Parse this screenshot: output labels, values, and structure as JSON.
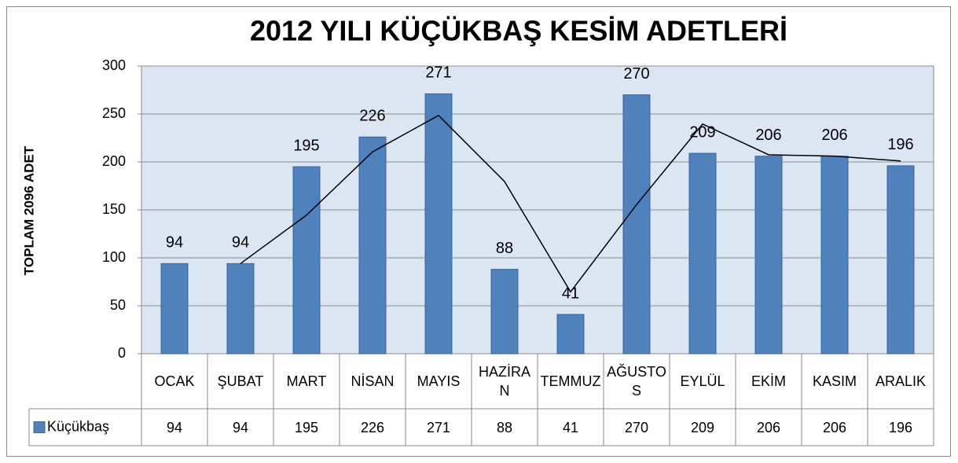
{
  "chart_data": {
    "type": "bar",
    "title": "2012 YILI KÜÇÜKBAŞ KESİM ADETLERİ",
    "y_axis_label": "TOPLAM  2096 ADET",
    "categories": [
      "OCAK",
      "ŞUBAT",
      "MART",
      "NİSAN",
      "MAYIS",
      "HAZİRAN",
      "TEMMUZ",
      "AĞUSTOS",
      "EYLÜL",
      "EKİM",
      "KASIM",
      "ARALIK"
    ],
    "series": [
      {
        "name": "Küçükbaş",
        "color": "#4f81bd",
        "values": [
          94,
          94,
          195,
          226,
          271,
          88,
          41,
          270,
          209,
          206,
          206,
          196
        ]
      }
    ],
    "trendline": {
      "color": "#000000",
      "values": [
        null,
        94,
        144.5,
        210.5,
        248.5,
        179.5,
        64.5,
        155.5,
        239.5,
        207.5,
        206,
        201
      ]
    },
    "ylim": [
      0,
      300
    ],
    "yticks": [
      0,
      50,
      100,
      150,
      200,
      250,
      300
    ],
    "grid": true,
    "data_table": true
  }
}
